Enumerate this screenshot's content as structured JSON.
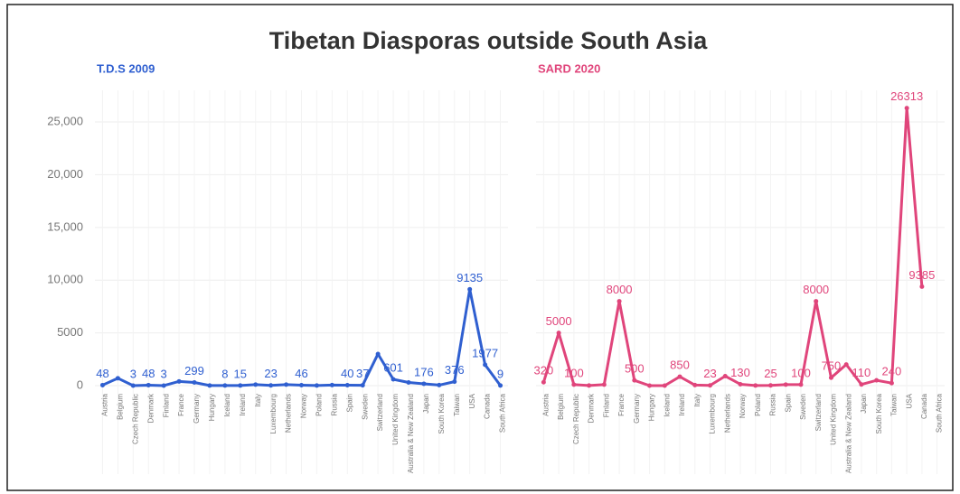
{
  "chart_data": {
    "type": "line",
    "title": "Tibetan Diasporas outside South Asia",
    "categories": [
      "Austria",
      "Belgium",
      "Czech Republic",
      "Denmark",
      "Finland",
      "France",
      "Germany",
      "Hungary",
      "Iceland",
      "Ireland",
      "Italy",
      "Luxembourg",
      "Netherlands",
      "Norway",
      "Poland",
      "Russia",
      "Spain",
      "Sweden",
      "Switzerland",
      "United Kingdom",
      "Australia & New Zealand",
      "Japan",
      "South Korea",
      "Taiwan",
      "USA",
      "Canada",
      "South Africa"
    ],
    "ylim": [
      0,
      28000
    ],
    "yticks": [
      0,
      5000,
      {
        "value": 10000,
        "label": "10,000"
      },
      {
        "value": 15000,
        "label": "15,000"
      },
      {
        "value": 20000,
        "label": "20,000"
      },
      {
        "value": 25000,
        "label": "25,000"
      }
    ],
    "grid": true,
    "series": [
      {
        "name": "T.D.S 2009",
        "color": "#2f5fd0",
        "values": [
          48,
          700,
          3,
          48,
          3,
          400,
          299,
          10,
          8,
          15,
          100,
          23,
          100,
          46,
          10,
          50,
          40,
          37,
          3000,
          601,
          300,
          176,
          50,
          376,
          9135,
          1977,
          9
        ],
        "value_labels": [
          "48",
          null,
          "3",
          "48",
          "3",
          null,
          "299",
          null,
          "8",
          "15",
          null,
          "23",
          null,
          "46",
          null,
          null,
          "40",
          "37",
          null,
          "601",
          null,
          "176",
          null,
          "376",
          "9135",
          "1977",
          "9"
        ]
      },
      {
        "name": "SARD 2020",
        "color": "#e0457b",
        "values": [
          320,
          5000,
          100,
          10,
          100,
          8000,
          500,
          0,
          0,
          850,
          50,
          23,
          900,
          130,
          10,
          25,
          100,
          100,
          8000,
          750,
          2000,
          110,
          500,
          240,
          26313,
          9385,
          null
        ],
        "value_labels": [
          "320",
          "5000",
          "100",
          null,
          null,
          "8000",
          "500",
          null,
          null,
          "850",
          null,
          "23",
          null,
          "130",
          null,
          "25",
          null,
          "100",
          "8000",
          "750",
          null,
          "110",
          null,
          "240",
          "26313",
          "9385",
          null
        ]
      }
    ]
  }
}
